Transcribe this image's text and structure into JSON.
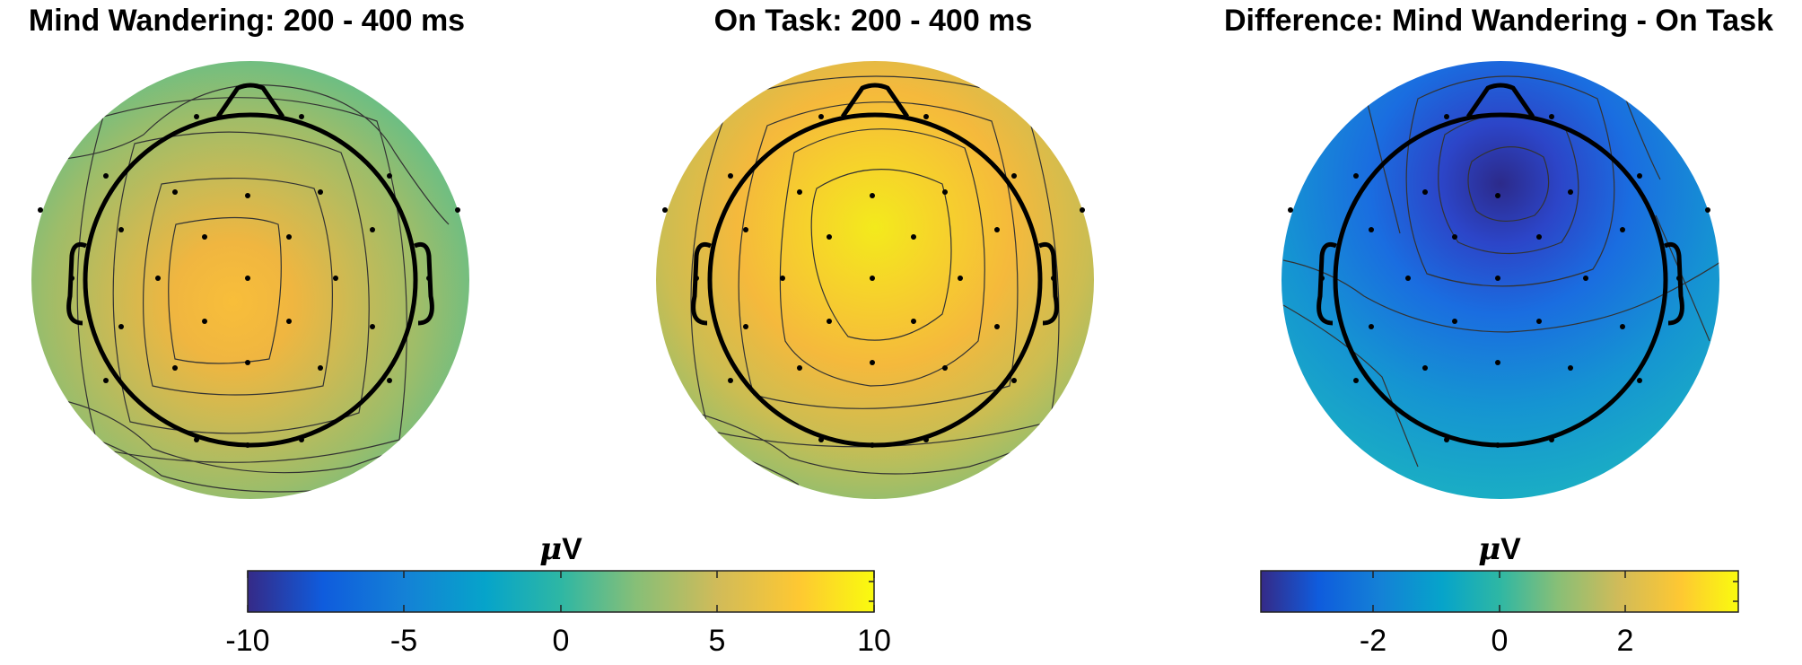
{
  "panels": [
    {
      "title": "Mind Wandering: 200 - 400 ms"
    },
    {
      "title": "On Task: 200 - 400 ms"
    },
    {
      "title": "Difference: Mind Wandering - On Task"
    }
  ],
  "colorbars": [
    {
      "unit_symbol": "μ",
      "unit_letter": "V",
      "range": [
        -10,
        10
      ],
      "ticks": [
        "-10",
        "-5",
        "0",
        "5",
        "10"
      ]
    },
    {
      "unit_symbol": "μ",
      "unit_letter": "V",
      "range": [
        -3.8,
        3.8
      ],
      "ticks": [
        "-2",
        "0",
        "2"
      ]
    }
  ],
  "colormap": "parula",
  "colors": {
    "outline": "#000000",
    "contour": "#333333",
    "electrode": "#000000"
  }
}
